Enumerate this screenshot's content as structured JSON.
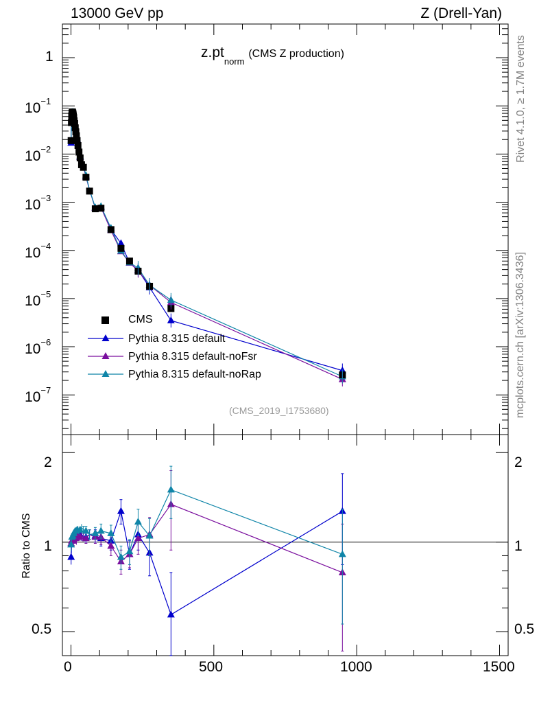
{
  "header": {
    "left_text": "13000 GeV pp",
    "right_text": "Z (Drell-Yan)"
  },
  "side_labels": {
    "rivet": "Rivet 4.1.0, ≥ 1.7M events",
    "mcplots": "mcplots.cern.ch [arXiv:1306.3436]"
  },
  "colors": {
    "data": "#000000",
    "default": "#0000cc",
    "noFsr": "#7a0f9e",
    "noRap": "#0f85a8"
  },
  "chart_data": [
    {
      "type": "scatter",
      "panel": "main",
      "title_main": "z.pt",
      "title_sub": "norm",
      "title_rest": "(CMS Z production)",
      "analysis": "(CMS_2019_I1753680)",
      "yscale": "log",
      "xlim": [
        -30,
        1530
      ],
      "ylim": [
        1.5e-08,
        5
      ],
      "x_ticks": [
        0,
        500,
        1000,
        1500
      ],
      "y_ticks": [
        {
          "value": 1,
          "label": "1",
          "exp": ""
        },
        {
          "value": 0.1,
          "label": "10",
          "exp": "−1"
        },
        {
          "value": 0.01,
          "label": "10",
          "exp": "−2"
        },
        {
          "value": 0.001,
          "label": "10",
          "exp": "−3"
        },
        {
          "value": 0.0001,
          "label": "10",
          "exp": "−4"
        },
        {
          "value": 1e-05,
          "label": "10",
          "exp": "−5"
        },
        {
          "value": 1e-06,
          "label": "10",
          "exp": "−6"
        },
        {
          "value": 1e-07,
          "label": "10",
          "exp": "−7"
        }
      ],
      "legend": [
        {
          "key": "data",
          "label": "CMS",
          "marker": "square"
        },
        {
          "key": "default",
          "label": "Pythia 8.315 default",
          "marker": "triangle"
        },
        {
          "key": "noFsr",
          "label": "Pythia 8.315 default-noFsr",
          "marker": "triangle"
        },
        {
          "key": "noRap",
          "label": "Pythia 8.315 default-noRap",
          "marker": "triangle"
        }
      ],
      "x": [
        0.5,
        1.5,
        2.5,
        3.5,
        4.5,
        5.5,
        6.5,
        7.5,
        8.5,
        9.5,
        11,
        13,
        15,
        17,
        19,
        21.5,
        24.5,
        28,
        32,
        37,
        43.5,
        52.5,
        65,
        85,
        105,
        140,
        175,
        205,
        235,
        275,
        350,
        950
      ],
      "data": [
        0.019,
        0.045,
        0.062,
        0.071,
        0.075,
        0.074,
        0.071,
        0.067,
        0.062,
        0.057,
        0.049,
        0.043,
        0.035,
        0.029,
        0.024,
        0.019,
        0.015,
        0.011,
        0.0083,
        0.006,
        0.0053,
        0.0033,
        0.0017,
        0.00073,
        0.00075,
        0.00027,
        0.00011,
        6e-05,
        3.7e-05,
        1.8e-05,
        6.2e-06,
        2.6e-07
      ],
      "series": [
        {
          "name": "Pythia 8.315 default",
          "key": "default",
          "values": [
            0.017,
            0.047,
            0.063,
            0.072,
            0.076,
            0.075,
            0.072,
            0.068,
            0.063,
            0.058,
            0.05,
            0.044,
            0.036,
            0.03,
            0.024,
            0.02,
            0.016,
            0.011,
            0.0087,
            0.0062,
            0.0055,
            0.0034,
            0.0018,
            0.00076,
            0.00078,
            0.00027,
            0.00014,
            5.5e-05,
            3.9e-05,
            1.7e-05,
            3.5e-06,
            3.2e-07
          ]
        },
        {
          "name": "Pythia 8.315 default-noFsr",
          "key": "noFsr",
          "values": [
            0.019,
            0.046,
            0.063,
            0.072,
            0.075,
            0.075,
            0.072,
            0.068,
            0.063,
            0.058,
            0.05,
            0.044,
            0.036,
            0.029,
            0.024,
            0.02,
            0.016,
            0.011,
            0.0086,
            0.0063,
            0.0055,
            0.0034,
            0.0018,
            0.00076,
            0.00078,
            0.00026,
            9.5e-05,
            5.5e-05,
            3.8e-05,
            1.9e-05,
            8.3e-06,
            2.1e-07
          ]
        },
        {
          "name": "Pythia 8.315 default-noRap",
          "key": "noRap",
          "values": [
            0.019,
            0.047,
            0.064,
            0.074,
            0.078,
            0.078,
            0.075,
            0.071,
            0.066,
            0.061,
            0.053,
            0.046,
            0.038,
            0.031,
            0.026,
            0.021,
            0.017,
            0.012,
            0.0091,
            0.0067,
            0.0058,
            0.0036,
            0.0018,
            0.00078,
            0.00082,
            0.00029,
            9.8e-05,
            5.6e-05,
            4.3e-05,
            1.9e-05,
            9.3e-06,
            2.4e-07
          ]
        }
      ]
    },
    {
      "type": "line",
      "panel": "ratio",
      "ylabel": "Ratio to CMS",
      "yscale": "log",
      "xlim": [
        -30,
        1530
      ],
      "ylim": [
        0.415,
        2.3
      ],
      "y_ticks": [
        {
          "value": 0.5,
          "label": "0.5"
        },
        {
          "value": 1,
          "label": "1"
        },
        {
          "value": 2,
          "label": "2"
        }
      ],
      "x_ticks": [
        0,
        500,
        1000,
        1500
      ],
      "x": [
        0.5,
        1.5,
        2.5,
        3.5,
        4.5,
        5.5,
        6.5,
        7.5,
        8.5,
        9.5,
        11,
        13,
        15,
        17,
        19,
        21.5,
        24.5,
        28,
        32,
        37,
        43.5,
        52.5,
        65,
        85,
        105,
        140,
        175,
        205,
        235,
        275,
        350,
        950
      ],
      "series": [
        {
          "name": "Pythia 8.315 default",
          "key": "default",
          "values": [
            0.89,
            0.95,
            1.0,
            1.01,
            1.02,
            1.03,
            1.02,
            1.02,
            1.02,
            1.03,
            1.03,
            1.03,
            1.04,
            1.04,
            1.02,
            1.04,
            1.06,
            1.04,
            1.06,
            1.04,
            1.04,
            1.04,
            1.06,
            1.05,
            1.03,
            1.01,
            1.27,
            0.91,
            1.06,
            0.92,
            0.57,
            1.27
          ],
          "errors": [
            0.05,
            0.03,
            0.02,
            0.02,
            0.02,
            0.02,
            0.02,
            0.02,
            0.02,
            0.02,
            0.02,
            0.02,
            0.02,
            0.02,
            0.02,
            0.03,
            0.03,
            0.03,
            0.03,
            0.03,
            0.03,
            0.04,
            0.04,
            0.05,
            0.06,
            0.07,
            0.12,
            0.1,
            0.12,
            0.15,
            0.22,
            0.43
          ]
        },
        {
          "name": "Pythia 8.315 default-noFsr",
          "key": "noFsr",
          "values": [
            0.99,
            1.02,
            1.01,
            1.01,
            1.0,
            1.01,
            1.01,
            1.01,
            1.01,
            1.02,
            1.02,
            1.02,
            1.03,
            1.01,
            1.0,
            1.05,
            1.06,
            1.04,
            1.04,
            1.05,
            1.04,
            1.03,
            1.06,
            1.04,
            1.04,
            0.97,
            0.86,
            0.91,
            1.03,
            1.06,
            1.34,
            0.79
          ],
          "errors": [
            0.05,
            0.03,
            0.02,
            0.02,
            0.02,
            0.02,
            0.02,
            0.02,
            0.02,
            0.02,
            0.02,
            0.02,
            0.02,
            0.02,
            0.02,
            0.03,
            0.03,
            0.03,
            0.03,
            0.03,
            0.03,
            0.04,
            0.04,
            0.05,
            0.06,
            0.07,
            0.08,
            0.09,
            0.12,
            0.15,
            0.4,
            0.36
          ]
        },
        {
          "name": "Pythia 8.315 default-noRap",
          "key": "noRap",
          "values": [
            0.98,
            1.04,
            1.03,
            1.04,
            1.04,
            1.05,
            1.05,
            1.06,
            1.06,
            1.07,
            1.08,
            1.07,
            1.09,
            1.07,
            1.08,
            1.1,
            1.1,
            1.09,
            1.1,
            1.12,
            1.1,
            1.09,
            1.06,
            1.07,
            1.09,
            1.07,
            0.89,
            0.93,
            1.17,
            1.05,
            1.5,
            0.91
          ],
          "errors": [
            0.05,
            0.03,
            0.02,
            0.02,
            0.02,
            0.02,
            0.02,
            0.02,
            0.02,
            0.02,
            0.02,
            0.02,
            0.02,
            0.02,
            0.02,
            0.03,
            0.03,
            0.03,
            0.03,
            0.03,
            0.03,
            0.04,
            0.04,
            0.05,
            0.06,
            0.07,
            0.08,
            0.09,
            0.12,
            0.15,
            0.3,
            0.38
          ]
        }
      ]
    }
  ]
}
